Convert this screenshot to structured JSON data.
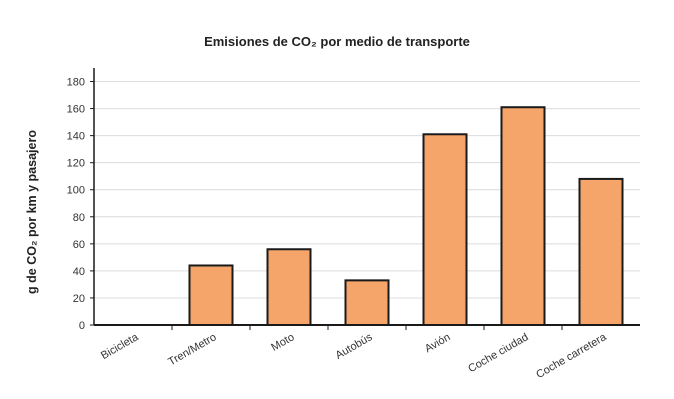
{
  "chart_data": {
    "type": "bar",
    "title": "Emisiones de CO₂ por medio de transporte",
    "xlabel": "",
    "ylabel": "g de CO₂ por km y pasajero",
    "categories": [
      "Bicicleta",
      "Tren/Metro",
      "Moto",
      "Autobús",
      "Avión",
      "Coche ciudad",
      "Coche carretera"
    ],
    "values": [
      0,
      44,
      56,
      33,
      141,
      161,
      108
    ],
    "ylim": [
      0,
      190
    ],
    "yticks": [
      0,
      20,
      40,
      60,
      80,
      100,
      120,
      140,
      160,
      180
    ],
    "grid": true,
    "bar_color": "#f5a46a",
    "bar_edge_color": "#1a1a1a"
  }
}
